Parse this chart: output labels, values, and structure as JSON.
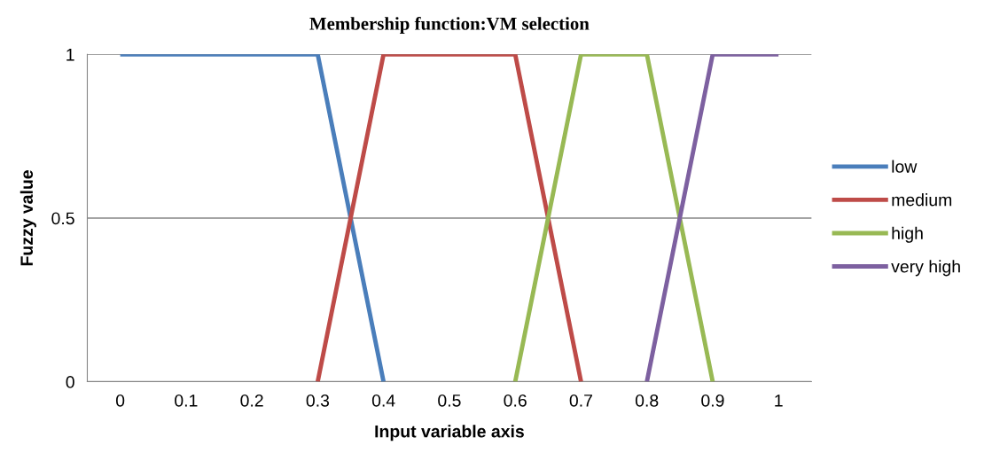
{
  "chart_data": {
    "type": "line",
    "title": "Membership function:VM selection",
    "xlabel": "Input variable axis",
    "ylabel": "Fuzzy value",
    "xlim": [
      -0.05,
      1.05
    ],
    "xticks": [
      0,
      0.1,
      0.2,
      0.3,
      0.4,
      0.5,
      0.6,
      0.7,
      0.8,
      0.9,
      1
    ],
    "ylim": [
      0,
      1
    ],
    "yticks": [
      0,
      0.5,
      1
    ],
    "grid": "y",
    "legend": "right",
    "marker": "none",
    "line_style": "solid",
    "series": [
      {
        "name": "low",
        "color": "#4a7ebb",
        "x": [
          0,
          0.3,
          0.4
        ],
        "values": [
          1,
          1,
          0
        ]
      },
      {
        "name": "medium",
        "color": "#be4b48",
        "x": [
          0.3,
          0.4,
          0.6,
          0.7
        ],
        "values": [
          0,
          1,
          1,
          0
        ]
      },
      {
        "name": "high",
        "color": "#98b954",
        "x": [
          0.6,
          0.7,
          0.8,
          0.9
        ],
        "values": [
          0,
          1,
          1,
          0
        ]
      },
      {
        "name": "very high",
        "color": "#7d60a0",
        "x": [
          0.8,
          0.9,
          1
        ],
        "values": [
          0,
          1,
          1
        ]
      }
    ]
  }
}
